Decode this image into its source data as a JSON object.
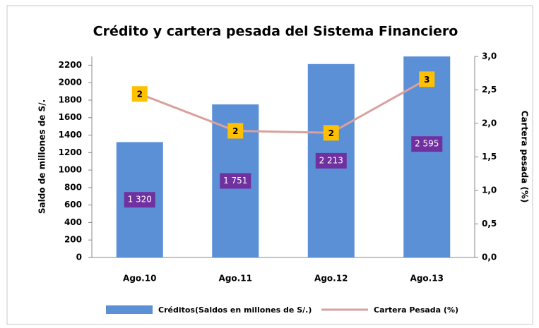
{
  "chart_data": {
    "type": "bar_line",
    "title": "Crédito y cartera pesada del Sistema Financiero",
    "y_label": "Saldo de millones de S/.",
    "y2_label": "Cartera pesada (%)",
    "categories": [
      "Ago.10",
      "Ago.11",
      "Ago.12",
      "Ago.13"
    ],
    "series": [
      {
        "name": "Créditos(Saldos en millones de S/.)",
        "type": "bar",
        "color": "#5b8fd6",
        "values": [
          1320,
          1751,
          2213,
          2595
        ],
        "value_labels": [
          "1 320",
          "1 751",
          "2 213",
          "2 595"
        ]
      },
      {
        "name": "Cartera Pesada (%)",
        "type": "line",
        "axis": "y2",
        "color": "#d9a19e",
        "values": [
          2.44,
          1.89,
          1.86,
          2.66
        ],
        "value_labels": [
          "2",
          "2",
          "2",
          "3"
        ]
      }
    ],
    "ylim": [
      0,
      2300
    ],
    "yticks": [
      0,
      200,
      400,
      600,
      800,
      1000,
      1200,
      1400,
      1600,
      1800,
      2000,
      2200
    ],
    "y2lim": [
      0,
      3
    ],
    "y2ticks": [
      {
        "value": 0,
        "label": "0,0"
      },
      {
        "value": 0.5,
        "label": "0,5"
      },
      {
        "value": 1,
        "label": "1,0"
      },
      {
        "value": 1.5,
        "label": "1,5"
      },
      {
        "value": 2,
        "label": "2,0"
      },
      {
        "value": 2.5,
        "label": "2,5"
      },
      {
        "value": 3,
        "label": "3,0"
      }
    ]
  }
}
